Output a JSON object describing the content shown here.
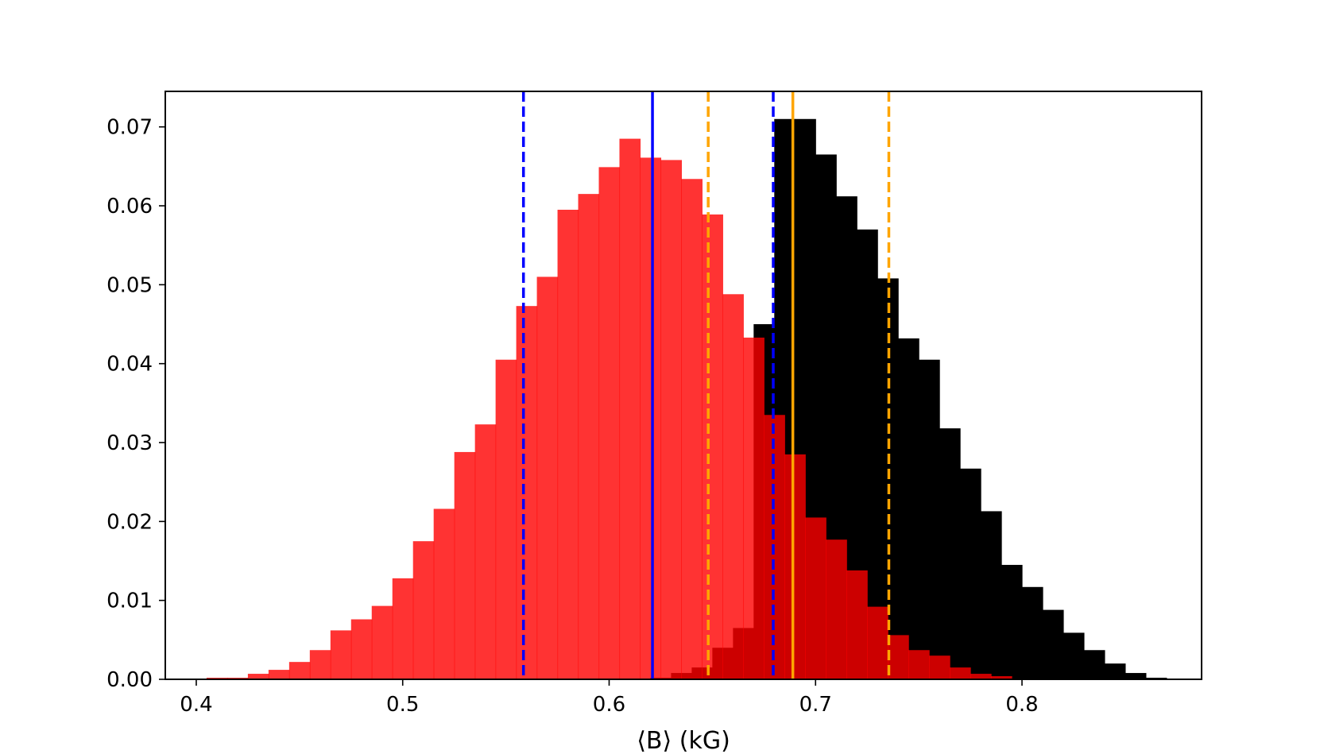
{
  "chart_data": {
    "type": "bar",
    "title": "",
    "xlabel": "⟨B⟩ (kG)",
    "ylabel": "",
    "xlim": [
      0.385,
      0.887
    ],
    "ylim": [
      0,
      0.0745
    ],
    "grid": false,
    "xticks": [
      0.4,
      0.5,
      0.6,
      0.7,
      0.8
    ],
    "xtick_labels": [
      "0.4",
      "0.5",
      "0.6",
      "0.7",
      "0.8"
    ],
    "yticks": [
      0,
      0.01,
      0.02,
      0.03,
      0.04,
      0.05,
      0.06,
      0.07
    ],
    "ytick_labels": [
      "0.00",
      "0.01",
      "0.02",
      "0.03",
      "0.04",
      "0.05",
      "0.06",
      "0.07"
    ],
    "series": [
      {
        "kind": "histogram",
        "color": "#000000",
        "bins": [
          [
            0.62,
            0.63,
            0.0002
          ],
          [
            0.63,
            0.64,
            0.0008
          ],
          [
            0.64,
            0.65,
            0.0015
          ],
          [
            0.65,
            0.66,
            0.004
          ],
          [
            0.66,
            0.67,
            0.0065
          ],
          [
            0.67,
            0.68,
            0.045
          ],
          [
            0.68,
            0.69,
            0.071
          ],
          [
            0.69,
            0.7,
            0.071
          ],
          [
            0.7,
            0.71,
            0.0665
          ],
          [
            0.71,
            0.72,
            0.0612
          ],
          [
            0.72,
            0.73,
            0.057
          ],
          [
            0.73,
            0.74,
            0.0508
          ],
          [
            0.74,
            0.75,
            0.0432
          ],
          [
            0.75,
            0.76,
            0.0405
          ],
          [
            0.76,
            0.77,
            0.0318
          ],
          [
            0.77,
            0.78,
            0.0267
          ],
          [
            0.78,
            0.79,
            0.0213
          ],
          [
            0.79,
            0.8,
            0.0145
          ],
          [
            0.8,
            0.81,
            0.0117
          ],
          [
            0.81,
            0.82,
            0.0088
          ],
          [
            0.82,
            0.83,
            0.0059
          ],
          [
            0.83,
            0.84,
            0.0037
          ],
          [
            0.84,
            0.85,
            0.002
          ],
          [
            0.85,
            0.86,
            0.0008
          ],
          [
            0.86,
            0.87,
            0.0002
          ]
        ]
      },
      {
        "kind": "histogram",
        "color": "#ff0000",
        "opacity": 0.8,
        "bins": [
          [
            0.405,
            0.415,
            0.0002
          ],
          [
            0.415,
            0.425,
            0.0002
          ],
          [
            0.425,
            0.435,
            0.0007
          ],
          [
            0.435,
            0.445,
            0.0012
          ],
          [
            0.445,
            0.455,
            0.0022
          ],
          [
            0.455,
            0.465,
            0.0037
          ],
          [
            0.465,
            0.475,
            0.0062
          ],
          [
            0.475,
            0.485,
            0.0076
          ],
          [
            0.485,
            0.495,
            0.0093
          ],
          [
            0.495,
            0.505,
            0.0128
          ],
          [
            0.505,
            0.515,
            0.0175
          ],
          [
            0.515,
            0.525,
            0.0216
          ],
          [
            0.525,
            0.535,
            0.0288
          ],
          [
            0.535,
            0.545,
            0.0323
          ],
          [
            0.545,
            0.555,
            0.0405
          ],
          [
            0.555,
            0.565,
            0.0473
          ],
          [
            0.565,
            0.575,
            0.051
          ],
          [
            0.575,
            0.585,
            0.0595
          ],
          [
            0.585,
            0.595,
            0.0615
          ],
          [
            0.595,
            0.605,
            0.0649
          ],
          [
            0.605,
            0.615,
            0.0685
          ],
          [
            0.615,
            0.625,
            0.0661
          ],
          [
            0.625,
            0.635,
            0.0658
          ],
          [
            0.635,
            0.645,
            0.0634
          ],
          [
            0.645,
            0.655,
            0.0589
          ],
          [
            0.655,
            0.665,
            0.0488
          ],
          [
            0.665,
            0.675,
            0.0433
          ],
          [
            0.675,
            0.685,
            0.0335
          ],
          [
            0.685,
            0.695,
            0.0285
          ],
          [
            0.695,
            0.705,
            0.0205
          ],
          [
            0.705,
            0.715,
            0.0177
          ],
          [
            0.715,
            0.725,
            0.0138
          ],
          [
            0.725,
            0.735,
            0.0092
          ],
          [
            0.735,
            0.745,
            0.0056
          ],
          [
            0.745,
            0.755,
            0.0037
          ],
          [
            0.755,
            0.765,
            0.003
          ],
          [
            0.765,
            0.775,
            0.0015
          ],
          [
            0.775,
            0.785,
            0.0007
          ],
          [
            0.785,
            0.795,
            0.0004
          ]
        ]
      }
    ],
    "vlines": [
      {
        "x": 0.621,
        "color": "#0000ff",
        "style": "solid"
      },
      {
        "x": 0.5585,
        "color": "#0000ff",
        "style": "dashed"
      },
      {
        "x": 0.6795,
        "color": "#0000ff",
        "style": "dashed"
      },
      {
        "x": 0.689,
        "color": "#ffa500",
        "style": "solid"
      },
      {
        "x": 0.648,
        "color": "#ffa500",
        "style": "dashed"
      },
      {
        "x": 0.7355,
        "color": "#ffa500",
        "style": "dashed"
      }
    ]
  }
}
